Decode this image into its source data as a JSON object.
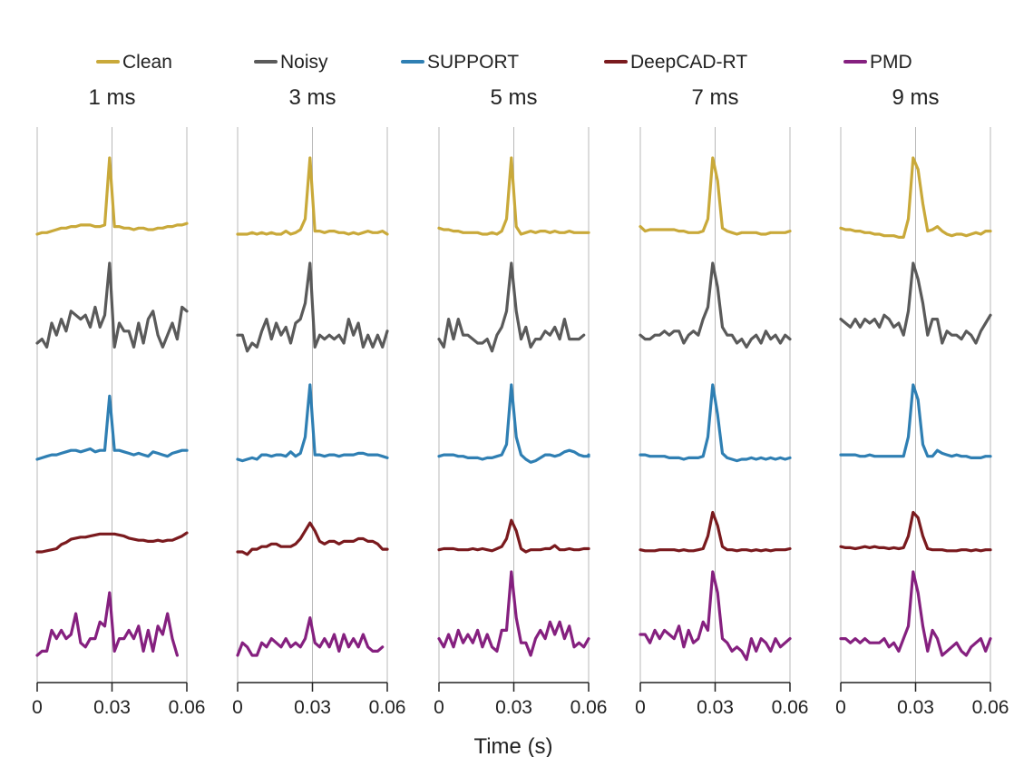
{
  "chart_data": {
    "type": "line",
    "xlabel": "Time (s)",
    "xlim": [
      0,
      0.06
    ],
    "x_ticks": [
      "0",
      "0.03",
      "0.06"
    ],
    "legend": [
      {
        "name": "Clean",
        "color": "#c9a93a"
      },
      {
        "name": "Noisy",
        "color": "#5a5a5a"
      },
      {
        "name": "SUPPORT",
        "color": "#2f7fb3"
      },
      {
        "name": "DeepCAD-RT",
        "color": "#7a1a1e"
      },
      {
        "name": "PMD",
        "color": "#85207f"
      }
    ],
    "panels": [
      {
        "title": "1 ms",
        "series": [
          {
            "name": "Clean",
            "values": [
              0.0,
              0.02,
              0.02,
              0.04,
              0.06,
              0.08,
              0.08,
              0.1,
              0.1,
              0.12,
              0.12,
              0.12,
              0.1,
              0.1,
              0.12,
              1.0,
              0.1,
              0.1,
              0.08,
              0.08,
              0.06,
              0.08,
              0.08,
              0.06,
              0.06,
              0.08,
              0.08,
              0.1,
              0.1,
              0.12,
              0.12,
              0.14
            ]
          },
          {
            "name": "Noisy",
            "values": [
              0.0,
              0.05,
              -0.05,
              0.25,
              0.1,
              0.3,
              0.15,
              0.4,
              0.35,
              0.3,
              0.35,
              0.2,
              0.45,
              0.2,
              0.35,
              1.0,
              -0.05,
              0.25,
              0.15,
              0.15,
              -0.05,
              0.25,
              0.0,
              0.3,
              0.4,
              0.1,
              -0.05,
              0.1,
              0.25,
              0.05,
              0.45,
              0.4
            ]
          },
          {
            "name": "SUPPORT",
            "values": [
              0.0,
              0.02,
              0.04,
              0.06,
              0.06,
              0.08,
              0.1,
              0.12,
              0.12,
              0.1,
              0.12,
              0.14,
              0.1,
              0.12,
              0.12,
              0.85,
              0.12,
              0.12,
              0.1,
              0.08,
              0.06,
              0.08,
              0.06,
              0.04,
              0.1,
              0.08,
              0.06,
              0.04,
              0.08,
              0.1,
              0.12,
              0.12
            ]
          },
          {
            "name": "DeepCAD-RT",
            "values": [
              0.0,
              0.0,
              0.02,
              0.04,
              0.06,
              0.14,
              0.18,
              0.24,
              0.26,
              0.28,
              0.28,
              0.3,
              0.32,
              0.34,
              0.34,
              0.34,
              0.34,
              0.32,
              0.3,
              0.26,
              0.24,
              0.22,
              0.22,
              0.2,
              0.2,
              0.22,
              0.2,
              0.22,
              0.22,
              0.26,
              0.3,
              0.36
            ]
          },
          {
            "name": "PMD",
            "values": [
              0.0,
              0.05,
              0.05,
              0.3,
              0.2,
              0.3,
              0.2,
              0.25,
              0.5,
              0.15,
              0.1,
              0.2,
              0.2,
              0.4,
              0.35,
              0.75,
              0.05,
              0.2,
              0.2,
              0.3,
              0.2,
              0.35,
              0.05,
              0.3,
              0.05,
              0.35,
              0.25,
              0.5,
              0.2,
              0.0
            ]
          }
        ]
      },
      {
        "title": "3 ms",
        "series": [
          {
            "name": "Clean",
            "values": [
              0.0,
              0.0,
              0.0,
              0.02,
              0.0,
              0.02,
              0.0,
              0.02,
              0.0,
              0.0,
              0.04,
              0.0,
              0.02,
              0.06,
              0.2,
              1.0,
              0.04,
              0.04,
              0.02,
              0.04,
              0.04,
              0.02,
              0.02,
              0.0,
              0.02,
              0.0,
              0.02,
              0.04,
              0.02,
              0.02,
              0.04,
              0.0
            ]
          },
          {
            "name": "Noisy",
            "values": [
              0.1,
              0.1,
              -0.1,
              0.0,
              -0.05,
              0.15,
              0.3,
              0.05,
              0.25,
              0.1,
              0.2,
              0.0,
              0.25,
              0.3,
              0.5,
              1.0,
              -0.05,
              0.1,
              0.05,
              0.1,
              0.05,
              0.1,
              0.0,
              0.3,
              0.1,
              0.25,
              -0.05,
              0.1,
              -0.05,
              0.1,
              -0.05,
              0.15
            ]
          },
          {
            "name": "SUPPORT",
            "values": [
              0.0,
              -0.02,
              0.0,
              0.02,
              0.0,
              0.06,
              0.06,
              0.04,
              0.06,
              0.06,
              0.04,
              0.1,
              0.04,
              0.08,
              0.3,
              1.0,
              0.06,
              0.06,
              0.04,
              0.06,
              0.06,
              0.04,
              0.06,
              0.06,
              0.06,
              0.08,
              0.08,
              0.06,
              0.06,
              0.06,
              0.04,
              0.02
            ]
          },
          {
            "name": "DeepCAD-RT",
            "values": [
              0.0,
              0.0,
              -0.05,
              0.05,
              0.05,
              0.1,
              0.1,
              0.15,
              0.15,
              0.1,
              0.1,
              0.1,
              0.15,
              0.25,
              0.4,
              0.55,
              0.4,
              0.2,
              0.15,
              0.2,
              0.2,
              0.15,
              0.2,
              0.2,
              0.2,
              0.25,
              0.25,
              0.2,
              0.2,
              0.15,
              0.05,
              0.05
            ]
          },
          {
            "name": "PMD",
            "values": [
              0.0,
              0.15,
              0.1,
              0.0,
              0.0,
              0.15,
              0.1,
              0.2,
              0.15,
              0.1,
              0.2,
              0.1,
              0.15,
              0.1,
              0.2,
              0.45,
              0.15,
              0.1,
              0.2,
              0.1,
              0.25,
              0.05,
              0.25,
              0.1,
              0.2,
              0.1,
              0.25,
              0.1,
              0.05,
              0.05,
              0.1
            ]
          }
        ]
      },
      {
        "title": "5 ms",
        "series": [
          {
            "name": "Clean",
            "values": [
              0.08,
              0.06,
              0.06,
              0.04,
              0.04,
              0.02,
              0.02,
              0.02,
              0.02,
              0.0,
              0.0,
              0.02,
              0.0,
              0.04,
              0.2,
              1.0,
              0.1,
              0.0,
              0.02,
              0.04,
              0.02,
              0.04,
              0.04,
              0.02,
              0.04,
              0.02,
              0.02,
              0.04,
              0.02,
              0.02,
              0.02,
              0.02
            ]
          },
          {
            "name": "Noisy",
            "values": [
              0.05,
              -0.05,
              0.3,
              0.05,
              0.3,
              0.1,
              0.1,
              0.05,
              0.0,
              0.0,
              0.05,
              -0.1,
              0.1,
              0.2,
              0.4,
              1.0,
              0.4,
              0.05,
              0.2,
              -0.05,
              0.05,
              0.05,
              0.15,
              0.1,
              0.2,
              0.05,
              0.3,
              0.05,
              0.05,
              0.05,
              0.1
            ]
          },
          {
            "name": "SUPPORT",
            "values": [
              0.04,
              0.06,
              0.06,
              0.06,
              0.04,
              0.04,
              0.02,
              0.02,
              0.02,
              0.0,
              0.02,
              0.02,
              0.04,
              0.06,
              0.2,
              1.0,
              0.3,
              0.06,
              0.0,
              -0.04,
              -0.02,
              0.02,
              0.06,
              0.06,
              0.04,
              0.06,
              0.1,
              0.12,
              0.1,
              0.06,
              0.04,
              0.04,
              0.06
            ]
          },
          {
            "name": "DeepCAD-RT",
            "values": [
              0.04,
              0.06,
              0.06,
              0.06,
              0.04,
              0.04,
              0.04,
              0.06,
              0.04,
              0.06,
              0.04,
              0.02,
              0.06,
              0.1,
              0.25,
              0.6,
              0.4,
              0.06,
              0.0,
              0.04,
              0.04,
              0.04,
              0.06,
              0.06,
              0.12,
              0.04,
              0.04,
              0.06,
              0.04,
              0.04,
              0.06,
              0.06
            ]
          },
          {
            "name": "PMD",
            "values": [
              0.2,
              0.1,
              0.25,
              0.1,
              0.3,
              0.15,
              0.25,
              0.15,
              0.3,
              0.1,
              0.25,
              0.1,
              0.05,
              0.3,
              0.3,
              1.0,
              0.45,
              0.15,
              0.15,
              0.0,
              0.2,
              0.3,
              0.2,
              0.4,
              0.25,
              0.4,
              0.2,
              0.35,
              0.1,
              0.15,
              0.1,
              0.2
            ]
          }
        ]
      },
      {
        "title": "7 ms",
        "series": [
          {
            "name": "Clean",
            "values": [
              0.1,
              0.04,
              0.06,
              0.06,
              0.06,
              0.06,
              0.06,
              0.06,
              0.04,
              0.04,
              0.02,
              0.02,
              0.02,
              0.04,
              0.2,
              1.0,
              0.7,
              0.08,
              0.04,
              0.02,
              0.0,
              0.02,
              0.02,
              0.02,
              0.02,
              0.0,
              0.0,
              0.02,
              0.02,
              0.02,
              0.02,
              0.04
            ]
          },
          {
            "name": "Noisy",
            "values": [
              0.1,
              0.05,
              0.05,
              0.1,
              0.1,
              0.15,
              0.1,
              0.15,
              0.15,
              0.0,
              0.1,
              0.15,
              0.1,
              0.3,
              0.45,
              1.0,
              0.7,
              0.2,
              0.1,
              0.1,
              0.0,
              0.05,
              -0.05,
              0.05,
              0.1,
              0.0,
              0.15,
              0.05,
              0.1,
              0.0,
              0.1,
              0.05
            ]
          },
          {
            "name": "SUPPORT",
            "values": [
              0.06,
              0.06,
              0.04,
              0.04,
              0.04,
              0.04,
              0.02,
              0.02,
              0.02,
              0.0,
              0.02,
              0.02,
              0.02,
              0.04,
              0.3,
              1.0,
              0.6,
              0.08,
              0.02,
              0.0,
              -0.02,
              0.0,
              0.0,
              0.02,
              0.0,
              0.02,
              0.0,
              0.02,
              0.0,
              0.02,
              0.0,
              0.02
            ]
          },
          {
            "name": "DeepCAD-RT",
            "values": [
              0.04,
              0.02,
              0.02,
              0.02,
              0.04,
              0.04,
              0.04,
              0.04,
              0.02,
              0.04,
              0.02,
              0.02,
              0.04,
              0.06,
              0.3,
              0.75,
              0.5,
              0.1,
              0.04,
              0.04,
              0.02,
              0.04,
              0.04,
              0.02,
              0.04,
              0.02,
              0.04,
              0.02,
              0.04,
              0.04,
              0.04,
              0.06
            ]
          },
          {
            "name": "PMD",
            "values": [
              0.25,
              0.25,
              0.15,
              0.3,
              0.2,
              0.3,
              0.25,
              0.2,
              0.35,
              0.1,
              0.3,
              0.15,
              0.2,
              0.4,
              0.3,
              1.0,
              0.75,
              0.2,
              0.15,
              0.05,
              0.1,
              0.05,
              -0.05,
              0.2,
              0.05,
              0.2,
              0.15,
              0.05,
              0.2,
              0.1,
              0.15,
              0.2
            ]
          }
        ]
      },
      {
        "title": "9 ms",
        "series": [
          {
            "name": "Clean",
            "values": [
              0.08,
              0.06,
              0.06,
              0.04,
              0.04,
              0.02,
              0.02,
              0.0,
              0.0,
              -0.02,
              -0.02,
              -0.02,
              -0.04,
              -0.04,
              0.2,
              1.0,
              0.85,
              0.4,
              0.04,
              0.06,
              0.1,
              0.04,
              0.0,
              -0.02,
              0.0,
              0.0,
              -0.02,
              0.0,
              0.02,
              0.0,
              0.04,
              0.04
            ]
          },
          {
            "name": "Noisy",
            "values": [
              0.3,
              0.25,
              0.2,
              0.3,
              0.2,
              0.3,
              0.25,
              0.3,
              0.2,
              0.35,
              0.3,
              0.2,
              0.25,
              0.1,
              0.4,
              1.0,
              0.8,
              0.5,
              0.1,
              0.3,
              0.3,
              0.0,
              0.15,
              0.1,
              0.1,
              0.05,
              0.15,
              0.1,
              0.0,
              0.15,
              0.25,
              0.35
            ]
          },
          {
            "name": "SUPPORT",
            "values": [
              0.06,
              0.06,
              0.06,
              0.06,
              0.04,
              0.04,
              0.06,
              0.04,
              0.04,
              0.04,
              0.04,
              0.04,
              0.04,
              0.04,
              0.3,
              1.0,
              0.8,
              0.2,
              0.04,
              0.04,
              0.12,
              0.08,
              0.06,
              0.04,
              0.06,
              0.04,
              0.04,
              0.02,
              0.02,
              0.02,
              0.04,
              0.04
            ]
          },
          {
            "name": "DeepCAD-RT",
            "values": [
              0.1,
              0.08,
              0.08,
              0.06,
              0.08,
              0.1,
              0.08,
              0.1,
              0.08,
              0.08,
              0.06,
              0.08,
              0.06,
              0.08,
              0.3,
              0.75,
              0.65,
              0.3,
              0.06,
              0.04,
              0.04,
              0.04,
              0.02,
              0.02,
              0.02,
              0.04,
              0.04,
              0.02,
              0.04,
              0.02,
              0.04,
              0.04
            ]
          },
          {
            "name": "PMD",
            "values": [
              0.2,
              0.2,
              0.15,
              0.2,
              0.15,
              0.2,
              0.15,
              0.15,
              0.15,
              0.2,
              0.1,
              0.15,
              0.05,
              0.2,
              0.35,
              1.0,
              0.75,
              0.35,
              0.05,
              0.3,
              0.2,
              0.0,
              0.05,
              0.1,
              0.15,
              0.05,
              0.0,
              0.1,
              0.15,
              0.2,
              0.05,
              0.2
            ]
          }
        ]
      }
    ]
  }
}
